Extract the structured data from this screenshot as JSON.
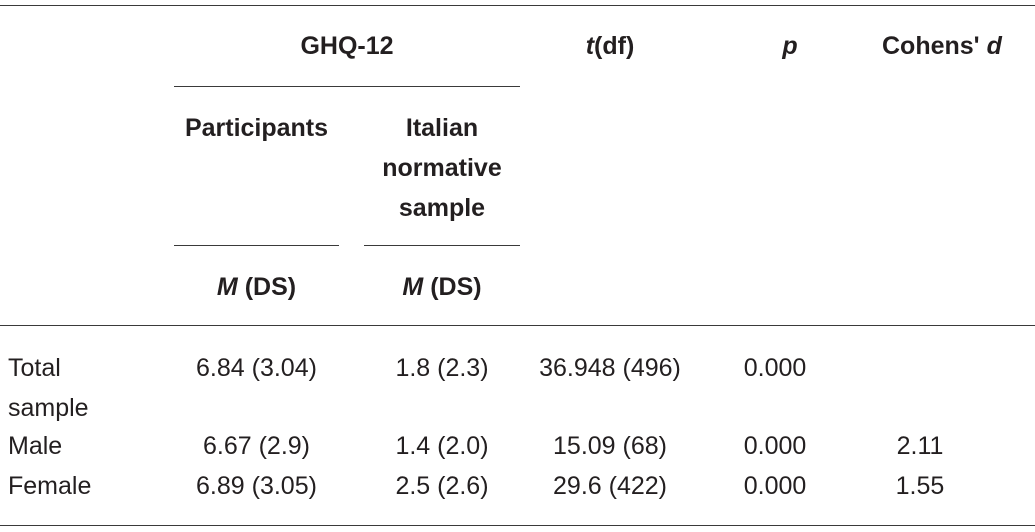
{
  "header": {
    "ghq_label": "GHQ-12",
    "t_italic": "t",
    "t_rest": "(df)",
    "p_label": "p",
    "cohens_prefix": "Cohens' ",
    "cohens_d": "d",
    "participants": "Participants",
    "italian_line1": "Italian",
    "italian_line2": "normative",
    "italian_line3": "sample",
    "m_italic": "M",
    "ds_rest": " (DS)"
  },
  "rows": [
    {
      "label_line1": "Total",
      "label_line2": "sample",
      "participants": "6.84 (3.04)",
      "italian": "1.8 (2.3)",
      "t": "36.948 (496)",
      "p": "0.000",
      "d": ""
    },
    {
      "label_line1": "Male",
      "label_line2": "",
      "participants": "6.67 (2.9)",
      "italian": "1.4 (2.0)",
      "t": "15.09 (68)",
      "p": "0.000",
      "d": "2.11"
    },
    {
      "label_line1": "Female",
      "label_line2": "",
      "participants": "6.89 (3.05)",
      "italian": "2.5 (2.6)",
      "t": "29.6 (422)",
      "p": "0.000",
      "d": "1.55"
    }
  ]
}
